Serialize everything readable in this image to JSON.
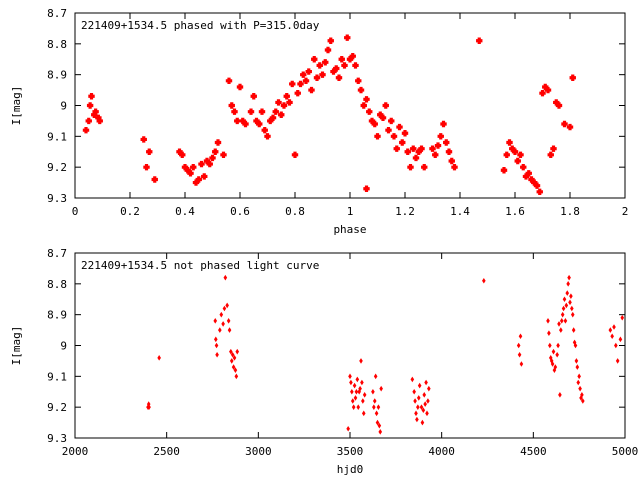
{
  "chart_data": [
    {
      "type": "scatter",
      "title": "221409+1534.5 phased with P=315.0day",
      "xlabel": "phase",
      "ylabel": "I[mag]",
      "xlim": [
        0,
        2
      ],
      "ylim": [
        9.3,
        8.7
      ],
      "y_inverted": true,
      "xticks": [
        "0",
        "0.2",
        "0.4",
        "0.6",
        "0.8",
        "1",
        "1.2",
        "1.4",
        "1.6",
        "1.8",
        "2"
      ],
      "xtick_values": [
        0,
        0.2,
        0.4,
        0.6,
        0.8,
        1.0,
        1.2,
        1.4,
        1.6,
        1.8,
        2.0
      ],
      "yticks": [
        "8.7",
        "8.8",
        "8.9",
        "9",
        "9.1",
        "9.2",
        "9.3"
      ],
      "ytick_values": [
        8.7,
        8.8,
        8.9,
        9.0,
        9.1,
        9.2,
        9.3
      ],
      "marker_color": "#ff0000",
      "marker": "cross",
      "points": [
        [
          0.04,
          9.08
        ],
        [
          0.05,
          9.05
        ],
        [
          0.055,
          9.0
        ],
        [
          0.06,
          8.97
        ],
        [
          0.07,
          9.03
        ],
        [
          0.075,
          9.02
        ],
        [
          0.085,
          9.04
        ],
        [
          0.09,
          9.05
        ],
        [
          0.25,
          9.11
        ],
        [
          0.26,
          9.2
        ],
        [
          0.27,
          9.15
        ],
        [
          0.29,
          9.24
        ],
        [
          0.38,
          9.15
        ],
        [
          0.39,
          9.16
        ],
        [
          0.4,
          9.2
        ],
        [
          0.41,
          9.21
        ],
        [
          0.42,
          9.22
        ],
        [
          0.43,
          9.2
        ],
        [
          0.44,
          9.25
        ],
        [
          0.45,
          9.24
        ],
        [
          0.46,
          9.19
        ],
        [
          0.47,
          9.23
        ],
        [
          0.48,
          9.18
        ],
        [
          0.49,
          9.19
        ],
        [
          0.5,
          9.17
        ],
        [
          0.51,
          9.15
        ],
        [
          0.52,
          9.12
        ],
        [
          0.54,
          9.16
        ],
        [
          0.56,
          8.92
        ],
        [
          0.57,
          9.0
        ],
        [
          0.58,
          9.02
        ],
        [
          0.59,
          9.05
        ],
        [
          0.6,
          8.94
        ],
        [
          0.61,
          9.05
        ],
        [
          0.62,
          9.06
        ],
        [
          0.64,
          9.02
        ],
        [
          0.65,
          8.97
        ],
        [
          0.66,
          9.05
        ],
        [
          0.67,
          9.06
        ],
        [
          0.68,
          9.02
        ],
        [
          0.69,
          9.08
        ],
        [
          0.7,
          9.1
        ],
        [
          0.71,
          9.05
        ],
        [
          0.72,
          9.04
        ],
        [
          0.73,
          9.02
        ],
        [
          0.74,
          8.99
        ],
        [
          0.75,
          9.03
        ],
        [
          0.76,
          9.0
        ],
        [
          0.77,
          8.97
        ],
        [
          0.78,
          8.99
        ],
        [
          0.79,
          8.93
        ],
        [
          0.8,
          9.16
        ],
        [
          0.81,
          8.96
        ],
        [
          0.82,
          8.93
        ],
        [
          0.83,
          8.9
        ],
        [
          0.84,
          8.92
        ],
        [
          0.85,
          8.89
        ],
        [
          0.86,
          8.95
        ],
        [
          0.87,
          8.85
        ],
        [
          0.88,
          8.91
        ],
        [
          0.89,
          8.87
        ],
        [
          0.9,
          8.9
        ],
        [
          0.91,
          8.86
        ],
        [
          0.92,
          8.82
        ],
        [
          0.93,
          8.79
        ],
        [
          0.94,
          8.89
        ],
        [
          0.95,
          8.88
        ],
        [
          0.96,
          8.91
        ],
        [
          0.97,
          8.85
        ],
        [
          0.98,
          8.87
        ],
        [
          0.99,
          8.78
        ],
        [
          1.0,
          8.85
        ],
        [
          1.01,
          8.84
        ],
        [
          1.02,
          8.87
        ],
        [
          1.03,
          8.92
        ],
        [
          1.04,
          8.95
        ],
        [
          1.05,
          9.0
        ],
        [
          1.06,
          8.98
        ],
        [
          1.07,
          9.02
        ],
        [
          1.08,
          9.05
        ],
        [
          1.09,
          9.06
        ],
        [
          1.1,
          9.1
        ],
        [
          1.11,
          9.03
        ],
        [
          1.12,
          9.04
        ],
        [
          1.13,
          9.0
        ],
        [
          1.14,
          9.08
        ],
        [
          1.15,
          9.05
        ],
        [
          1.16,
          9.1
        ],
        [
          1.17,
          9.14
        ],
        [
          1.18,
          9.07
        ],
        [
          1.19,
          9.12
        ],
        [
          1.2,
          9.09
        ],
        [
          1.21,
          9.15
        ],
        [
          1.22,
          9.2
        ],
        [
          1.23,
          9.14
        ],
        [
          1.24,
          9.17
        ],
        [
          1.25,
          9.15
        ],
        [
          1.26,
          9.14
        ],
        [
          1.27,
          9.2
        ],
        [
          1.06,
          9.27
        ],
        [
          1.3,
          9.14
        ],
        [
          1.31,
          9.16
        ],
        [
          1.32,
          9.13
        ],
        [
          1.33,
          9.1
        ],
        [
          1.34,
          9.06
        ],
        [
          1.35,
          9.12
        ],
        [
          1.36,
          9.15
        ],
        [
          1.37,
          9.18
        ],
        [
          1.38,
          9.2
        ],
        [
          1.47,
          8.79
        ],
        [
          1.56,
          9.21
        ],
        [
          1.57,
          9.16
        ],
        [
          1.58,
          9.12
        ],
        [
          1.59,
          9.14
        ],
        [
          1.6,
          9.15
        ],
        [
          1.61,
          9.18
        ],
        [
          1.62,
          9.16
        ],
        [
          1.63,
          9.2
        ],
        [
          1.64,
          9.23
        ],
        [
          1.65,
          9.22
        ],
        [
          1.66,
          9.24
        ],
        [
          1.67,
          9.25
        ],
        [
          1.68,
          9.26
        ],
        [
          1.69,
          9.28
        ],
        [
          1.7,
          8.96
        ],
        [
          1.71,
          8.94
        ],
        [
          1.72,
          8.95
        ],
        [
          1.73,
          9.16
        ],
        [
          1.74,
          9.14
        ],
        [
          1.75,
          8.99
        ],
        [
          1.76,
          9.0
        ],
        [
          1.78,
          9.06
        ],
        [
          1.8,
          9.07
        ],
        [
          1.81,
          8.91
        ]
      ]
    },
    {
      "type": "scatter",
      "title": "221409+1534.5 not phased light curve",
      "xlabel": "hjd0",
      "ylabel": "I[mag]",
      "xlim": [
        2000,
        5000
      ],
      "ylim": [
        9.3,
        8.7
      ],
      "y_inverted": true,
      "xticks": [
        "2000",
        "2500",
        "3000",
        "3500",
        "4000",
        "4500",
        "5000"
      ],
      "xtick_values": [
        2000,
        2500,
        3000,
        3500,
        4000,
        4500,
        5000
      ],
      "yticks": [
        "8.7",
        "8.8",
        "8.9",
        "9",
        "9.1",
        "9.2",
        "9.3"
      ],
      "ytick_values": [
        8.7,
        8.8,
        8.9,
        9.0,
        9.1,
        9.2,
        9.3
      ],
      "marker_color": "#ff0000",
      "marker": "diamond",
      "points": [
        [
          2398,
          9.2
        ],
        [
          2402,
          9.19
        ],
        [
          2404,
          9.2
        ],
        [
          2459,
          9.04
        ],
        [
          2765,
          8.92
        ],
        [
          2768,
          8.98
        ],
        [
          2772,
          9.0
        ],
        [
          2775,
          9.03
        ],
        [
          2790,
          8.95
        ],
        [
          2798,
          8.9
        ],
        [
          2808,
          8.93
        ],
        [
          2815,
          8.88
        ],
        [
          2820,
          8.78
        ],
        [
          2830,
          8.87
        ],
        [
          2838,
          8.92
        ],
        [
          2843,
          8.95
        ],
        [
          2850,
          9.02
        ],
        [
          2855,
          9.05
        ],
        [
          2860,
          9.03
        ],
        [
          2865,
          9.07
        ],
        [
          2870,
          9.04
        ],
        [
          2875,
          9.08
        ],
        [
          2880,
          9.1
        ],
        [
          2885,
          9.02
        ],
        [
          3490,
          9.27
        ],
        [
          3500,
          9.1
        ],
        [
          3505,
          9.12
        ],
        [
          3510,
          9.15
        ],
        [
          3515,
          9.18
        ],
        [
          3520,
          9.2
        ],
        [
          3525,
          9.13
        ],
        [
          3530,
          9.17
        ],
        [
          3535,
          9.15
        ],
        [
          3540,
          9.11
        ],
        [
          3545,
          9.2
        ],
        [
          3550,
          9.15
        ],
        [
          3555,
          9.14
        ],
        [
          3560,
          9.05
        ],
        [
          3565,
          9.12
        ],
        [
          3570,
          9.18
        ],
        [
          3575,
          9.22
        ],
        [
          3580,
          9.16
        ],
        [
          3625,
          9.15
        ],
        [
          3630,
          9.2
        ],
        [
          3635,
          9.18
        ],
        [
          3640,
          9.1
        ],
        [
          3645,
          9.22
        ],
        [
          3650,
          9.25
        ],
        [
          3655,
          9.2
        ],
        [
          3660,
          9.26
        ],
        [
          3665,
          9.28
        ],
        [
          3670,
          9.14
        ],
        [
          3840,
          9.11
        ],
        [
          3850,
          9.15
        ],
        [
          3855,
          9.18
        ],
        [
          3860,
          9.22
        ],
        [
          3865,
          9.24
        ],
        [
          3870,
          9.2
        ],
        [
          3875,
          9.17
        ],
        [
          3880,
          9.13
        ],
        [
          3890,
          9.2
        ],
        [
          3895,
          9.25
        ],
        [
          3900,
          9.21
        ],
        [
          3905,
          9.16
        ],
        [
          3910,
          9.19
        ],
        [
          3915,
          9.12
        ],
        [
          3920,
          9.22
        ],
        [
          3925,
          9.18
        ],
        [
          3930,
          9.14
        ],
        [
          4230,
          8.79
        ],
        [
          4420,
          9.0
        ],
        [
          4425,
          9.03
        ],
        [
          4430,
          8.97
        ],
        [
          4435,
          9.06
        ],
        [
          4580,
          8.92
        ],
        [
          4585,
          8.96
        ],
        [
          4590,
          9.0
        ],
        [
          4595,
          9.04
        ],
        [
          4600,
          9.05
        ],
        [
          4605,
          9.06
        ],
        [
          4610,
          9.02
        ],
        [
          4615,
          9.08
        ],
        [
          4620,
          9.07
        ],
        [
          4630,
          9.03
        ],
        [
          4635,
          9.0
        ],
        [
          4640,
          8.93
        ],
        [
          4645,
          9.16
        ],
        [
          4650,
          8.95
        ],
        [
          4655,
          8.92
        ],
        [
          4660,
          8.9
        ],
        [
          4665,
          8.88
        ],
        [
          4670,
          8.85
        ],
        [
          4675,
          8.92
        ],
        [
          4680,
          8.87
        ],
        [
          4685,
          8.83
        ],
        [
          4690,
          8.8
        ],
        [
          4695,
          8.78
        ],
        [
          4700,
          8.86
        ],
        [
          4705,
          8.84
        ],
        [
          4710,
          8.88
        ],
        [
          4715,
          8.9
        ],
        [
          4720,
          8.95
        ],
        [
          4725,
          8.99
        ],
        [
          4730,
          9.0
        ],
        [
          4735,
          9.05
        ],
        [
          4740,
          9.07
        ],
        [
          4745,
          9.12
        ],
        [
          4750,
          9.1
        ],
        [
          4755,
          9.14
        ],
        [
          4760,
          9.17
        ],
        [
          4765,
          9.16
        ],
        [
          4770,
          9.18
        ],
        [
          4920,
          8.95
        ],
        [
          4930,
          8.97
        ],
        [
          4940,
          8.94
        ],
        [
          4950,
          9.0
        ],
        [
          4960,
          9.05
        ],
        [
          4975,
          8.98
        ],
        [
          4985,
          8.91
        ]
      ]
    }
  ]
}
